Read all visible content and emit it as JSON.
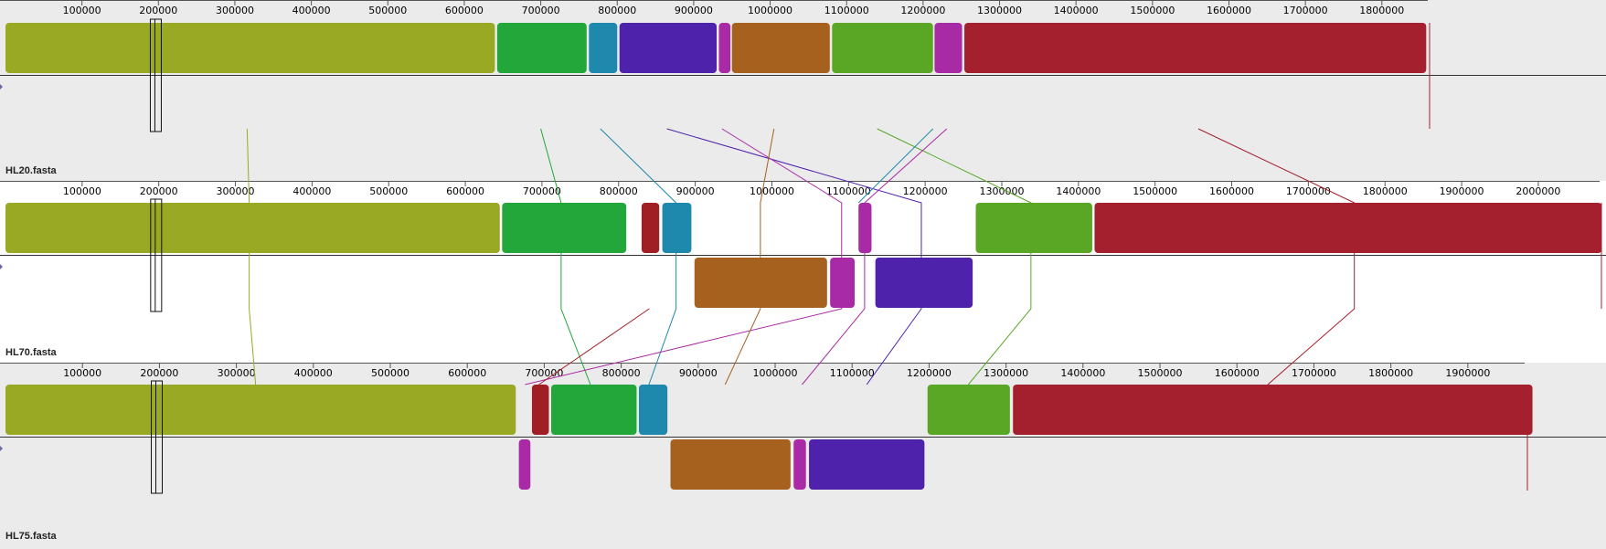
{
  "app": {
    "view": "Mauve alignment viewer"
  },
  "colors": {
    "panel_bg_a": "#ebebeb",
    "panel_bg_b": "#ffffff",
    "axis": "#333333",
    "olive": "#9aa923",
    "green": "#23a63a",
    "teal": "#1e88ad",
    "indigo": "#4f22ab",
    "magenta": "#a92aa5",
    "brown": "#a6611f",
    "lime": "#5aa625",
    "crimson": "#a5202e",
    "darkred": "#a01f24"
  },
  "genomes": [
    {
      "name": "HL20.fasta",
      "length": 1860000,
      "ticks": [
        "100000",
        "200000",
        "300000",
        "400000",
        "500000",
        "600000",
        "700000",
        "800000",
        "900000",
        "1000000",
        "1100000",
        "1200000",
        "1300000",
        "1400000",
        "1500000",
        "1600000",
        "1700000",
        "1800000"
      ],
      "blocks": [
        {
          "id": "A",
          "start": 0,
          "end": 640000,
          "strand": "+",
          "color": "olive"
        },
        {
          "id": "B",
          "start": 643000,
          "end": 760000,
          "strand": "+",
          "color": "green"
        },
        {
          "id": "C",
          "start": 763000,
          "end": 800000,
          "strand": "+",
          "color": "teal"
        },
        {
          "id": "D",
          "start": 803000,
          "end": 930000,
          "strand": "+",
          "color": "indigo"
        },
        {
          "id": "E",
          "start": 933000,
          "end": 948000,
          "strand": "+",
          "color": "magenta"
        },
        {
          "id": "F",
          "start": 950000,
          "end": 1078000,
          "strand": "+",
          "color": "brown"
        },
        {
          "id": "G",
          "start": 1081000,
          "end": 1213000,
          "strand": "+",
          "color": "lime"
        },
        {
          "id": "H",
          "start": 1215000,
          "end": 1251000,
          "strand": "+",
          "color": "magenta"
        },
        {
          "id": "I",
          "start": 1254000,
          "end": 1858000,
          "strand": "+",
          "color": "crimson"
        }
      ]
    },
    {
      "name": "HL70.fasta",
      "length": 2080000,
      "ticks": [
        "100000",
        "200000",
        "300000",
        "400000",
        "500000",
        "600000",
        "700000",
        "800000",
        "900000",
        "1000000",
        "1100000",
        "1200000",
        "1300000",
        "1400000",
        "1500000",
        "1600000",
        "1700000",
        "1800000",
        "1900000",
        "2000000"
      ],
      "blocks": [
        {
          "id": "A",
          "start": 0,
          "end": 645000,
          "strand": "+",
          "color": "olive"
        },
        {
          "id": "B",
          "start": 648000,
          "end": 810000,
          "strand": "+",
          "color": "green"
        },
        {
          "id": "J",
          "start": 830000,
          "end": 853000,
          "strand": "+",
          "color": "darkred"
        },
        {
          "id": "C",
          "start": 857000,
          "end": 895000,
          "strand": "+",
          "color": "teal"
        },
        {
          "id": "F",
          "start": 899000,
          "end": 1072000,
          "strand": "-",
          "color": "brown"
        },
        {
          "id": "E",
          "start": 1076000,
          "end": 1108000,
          "strand": "-",
          "color": "magenta"
        },
        {
          "id": "H",
          "start": 1113000,
          "end": 1130000,
          "strand": "+",
          "color": "magenta"
        },
        {
          "id": "D",
          "start": 1135000,
          "end": 1262000,
          "strand": "-",
          "color": "indigo"
        },
        {
          "id": "G",
          "start": 1266000,
          "end": 1418000,
          "strand": "+",
          "color": "lime"
        },
        {
          "id": "I",
          "start": 1421000,
          "end": 2083000,
          "strand": "+",
          "color": "crimson"
        }
      ]
    },
    {
      "name": "HL75.fasta",
      "length": 1975000,
      "ticks": [
        "100000",
        "200000",
        "300000",
        "400000",
        "500000",
        "600000",
        "700000",
        "800000",
        "900000",
        "1000000",
        "1100000",
        "1200000",
        "1300000",
        "1400000",
        "1500000",
        "1600000",
        "1700000",
        "1800000",
        "1900000"
      ],
      "blocks": [
        {
          "id": "A",
          "start": 0,
          "end": 663000,
          "strand": "+",
          "color": "olive"
        },
        {
          "id": "H",
          "start": 667000,
          "end": 682000,
          "strand": "-",
          "color": "magenta"
        },
        {
          "id": "J",
          "start": 684000,
          "end": 706000,
          "strand": "+",
          "color": "darkred"
        },
        {
          "id": "B",
          "start": 709000,
          "end": 820000,
          "strand": "+",
          "color": "green"
        },
        {
          "id": "C",
          "start": 823000,
          "end": 860000,
          "strand": "+",
          "color": "teal"
        },
        {
          "id": "F",
          "start": 864000,
          "end": 1020000,
          "strand": "-",
          "color": "brown"
        },
        {
          "id": "E",
          "start": 1024000,
          "end": 1040000,
          "strand": "-",
          "color": "magenta"
        },
        {
          "id": "D",
          "start": 1044000,
          "end": 1194000,
          "strand": "-",
          "color": "indigo"
        },
        {
          "id": "G",
          "start": 1198000,
          "end": 1305000,
          "strand": "+",
          "color": "lime"
        },
        {
          "id": "I",
          "start": 1309000,
          "end": 1984000,
          "strand": "+",
          "color": "crimson"
        }
      ]
    }
  ],
  "connectors": [
    {
      "color": "olive",
      "points": [
        [
          0,
          316000
        ],
        [
          1,
          318000
        ],
        [
          2,
          325000
        ]
      ]
    },
    {
      "color": "green",
      "points": [
        [
          0,
          700000
        ],
        [
          1,
          725000
        ],
        [
          2,
          760000
        ]
      ]
    },
    {
      "color": "teal",
      "points": [
        [
          0,
          778000
        ],
        [
          1,
          875000
        ],
        [
          2,
          836000
        ]
      ]
    },
    {
      "color": "indigo",
      "points": [
        [
          0,
          865000
        ],
        [
          1,
          1195000
        ],
        [
          2,
          1119000
        ]
      ]
    },
    {
      "color": "magenta",
      "points": [
        [
          0,
          937000
        ],
        [
          1,
          1091000
        ],
        [
          2,
          675000
        ]
      ]
    },
    {
      "color": "brown",
      "points": [
        [
          0,
          1005000
        ],
        [
          1,
          985000
        ],
        [
          2,
          935000
        ]
      ]
    },
    {
      "color": "lime",
      "points": [
        [
          0,
          1140000
        ],
        [
          1,
          1338000
        ],
        [
          2,
          1251000
        ]
      ]
    },
    {
      "color": "magenta",
      "points": [
        [
          0,
          1231000
        ],
        [
          1,
          1121000
        ],
        [
          2,
          1035000
        ]
      ]
    },
    {
      "color": "crimson",
      "points": [
        [
          0,
          1560000
        ],
        [
          1,
          1760000
        ],
        [
          2,
          1640000
        ]
      ]
    },
    {
      "color": "darkred",
      "points": [
        [
          1,
          840000
        ],
        [
          2,
          693000
        ]
      ]
    },
    {
      "color": "teal",
      "points": [
        [
          0,
          1213000
        ],
        [
          1,
          1113000
        ]
      ]
    }
  ]
}
